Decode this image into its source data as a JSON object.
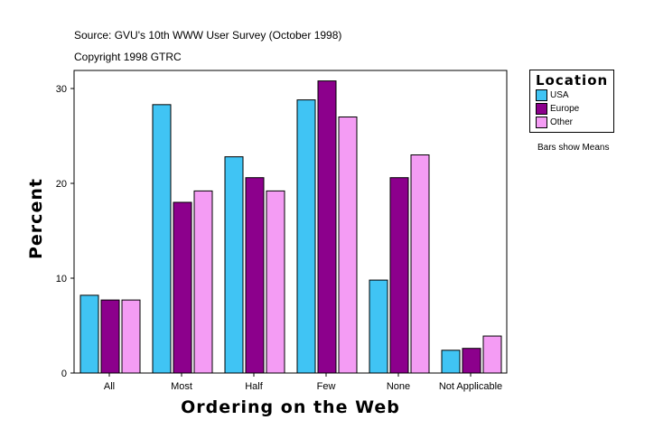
{
  "chart_data": {
    "type": "bar",
    "title": "Source: GVU's 10th WWW User Survey (October 1998)",
    "subtitle": "Copyright 1998 GTRC",
    "xlabel": "Ordering on the Web",
    "ylabel": "Percent",
    "ylim": [
      0,
      32
    ],
    "yticks": [
      0,
      10,
      20,
      30
    ],
    "categories": [
      "All",
      "Most",
      "Half",
      "Few",
      "None",
      "Not Applicable"
    ],
    "legend_title": "Location",
    "legend_placement": "right",
    "note": "Bars show Means",
    "series": [
      {
        "name": "USA",
        "color": "#40C4F4",
        "values": [
          8.2,
          28.3,
          22.8,
          28.8,
          9.8,
          2.4
        ]
      },
      {
        "name": "Europe",
        "color": "#8C008C",
        "values": [
          7.7,
          18.0,
          20.6,
          30.8,
          20.6,
          2.6
        ]
      },
      {
        "name": "Other",
        "color": "#F49CF4",
        "values": [
          7.7,
          19.2,
          19.2,
          27.0,
          23.0,
          3.9
        ]
      }
    ]
  }
}
